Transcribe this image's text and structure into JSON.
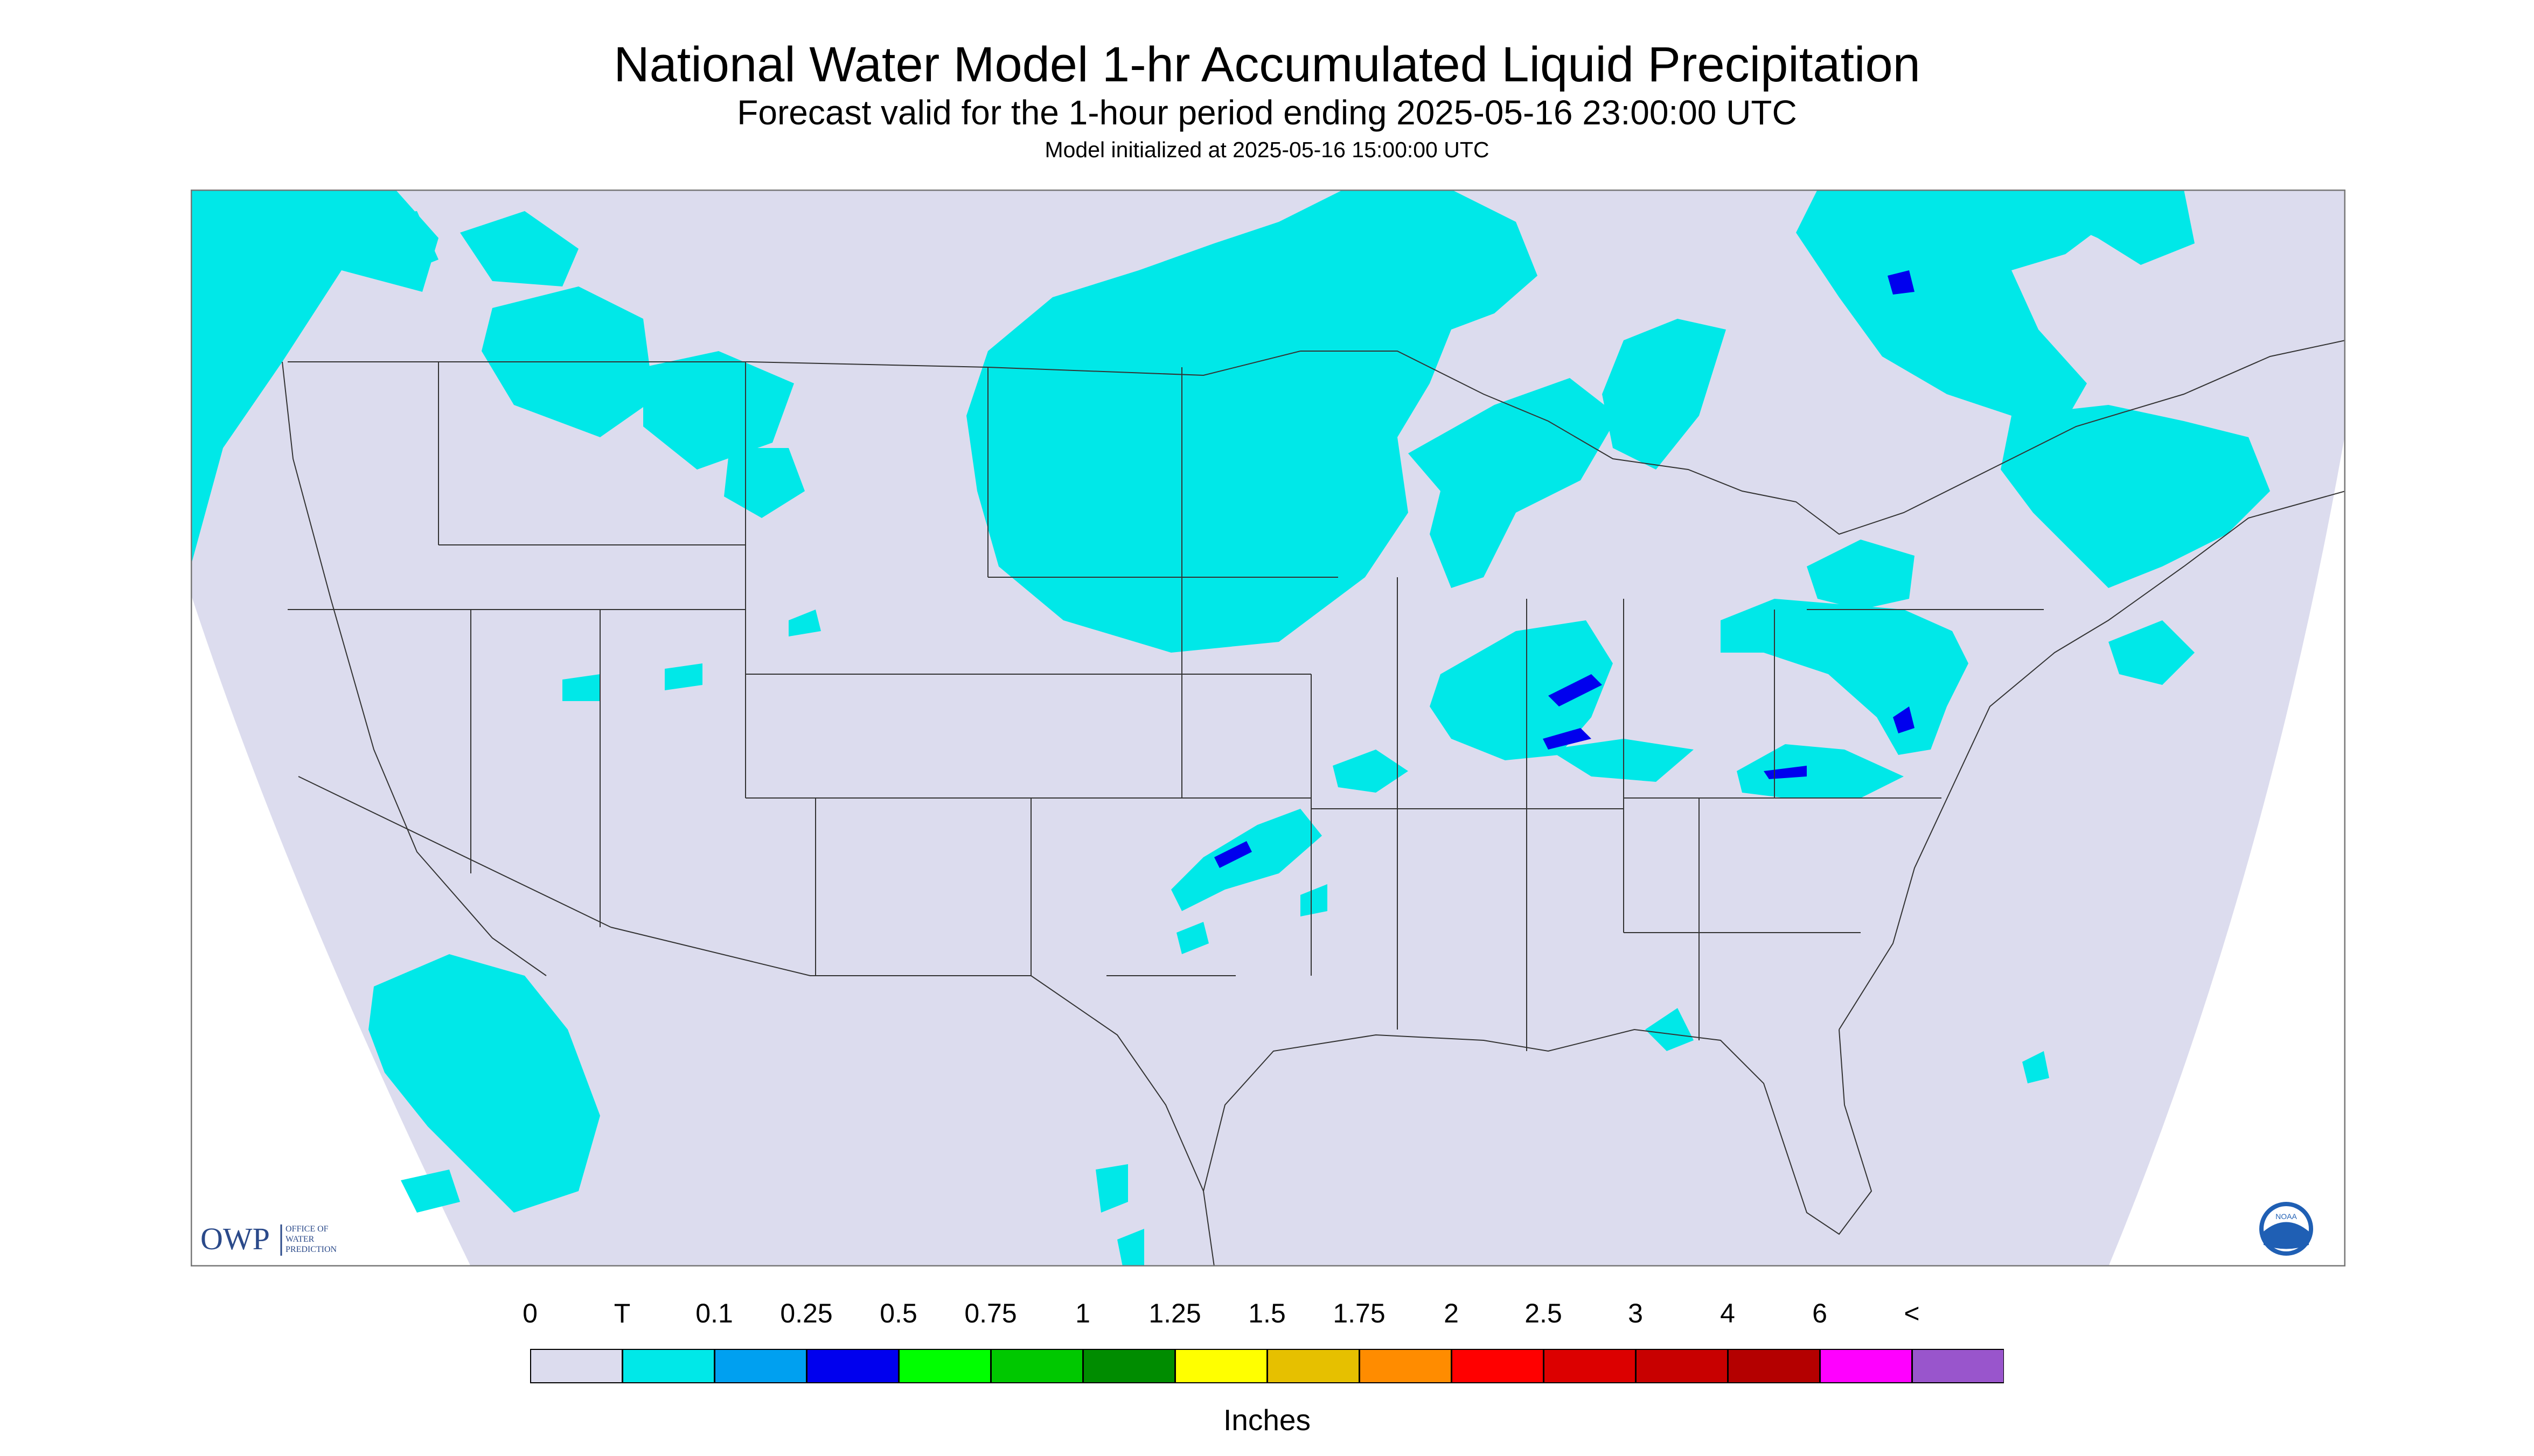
{
  "title": "National Water Model 1-hr Accumulated Liquid Precipitation",
  "subtitle": "Forecast valid for the 1-hour period ending 2025-05-16 23:00:00 UTC",
  "init_line": "Model initialized at 2025-05-16 15:00:00 UTC",
  "units": "Inches",
  "owp_logo": {
    "abbr": "OWP",
    "line1": "OFFICE OF",
    "line2": "WATER",
    "line3": "PREDICTION"
  },
  "noaa_logo": {
    "text": "NOAA"
  },
  "colors": {
    "background": "#dcdcee",
    "boundary": "#333333",
    "light_precip": "#00e8e8",
    "heavier_precip": "#0000ee"
  },
  "legend": {
    "labels": [
      "0",
      "T",
      "0.1",
      "0.25",
      "0.5",
      "0.75",
      "1",
      "1.25",
      "1.5",
      "1.75",
      "2",
      "2.5",
      "3",
      "4",
      "6",
      "<"
    ],
    "colors": [
      "#dcdcee",
      "#00e8e8",
      "#00a0f0",
      "#0000ee",
      "#00ff00",
      "#00c800",
      "#008c00",
      "#ffff00",
      "#e6c000",
      "#ff8c00",
      "#ff0000",
      "#dc0000",
      "#c80000",
      "#b40000",
      "#ff00ff",
      "#9955cc"
    ]
  }
}
